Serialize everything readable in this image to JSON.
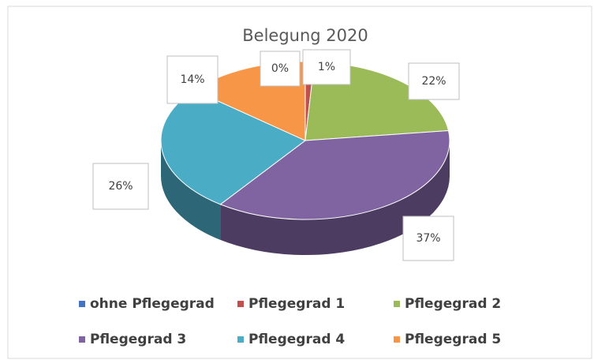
{
  "chart_data": {
    "type": "pie",
    "title": "Belegung 2020",
    "categories": [
      "ohne Pflegegrad",
      "Pflegegrad 1",
      "Pflegegrad 2",
      "Pflegegrad 3",
      "Pflegegrad 4",
      "Pflegegrad 5"
    ],
    "values": [
      0,
      1,
      22,
      37,
      26,
      14
    ],
    "value_labels": [
      "0%",
      "1%",
      "22%",
      "37%",
      "26%",
      "14%"
    ],
    "colors": [
      "#4472c4",
      "#c0504d",
      "#9bbb59",
      "#8064a2",
      "#4bacc6",
      "#f79646"
    ],
    "legend": "bottom"
  }
}
